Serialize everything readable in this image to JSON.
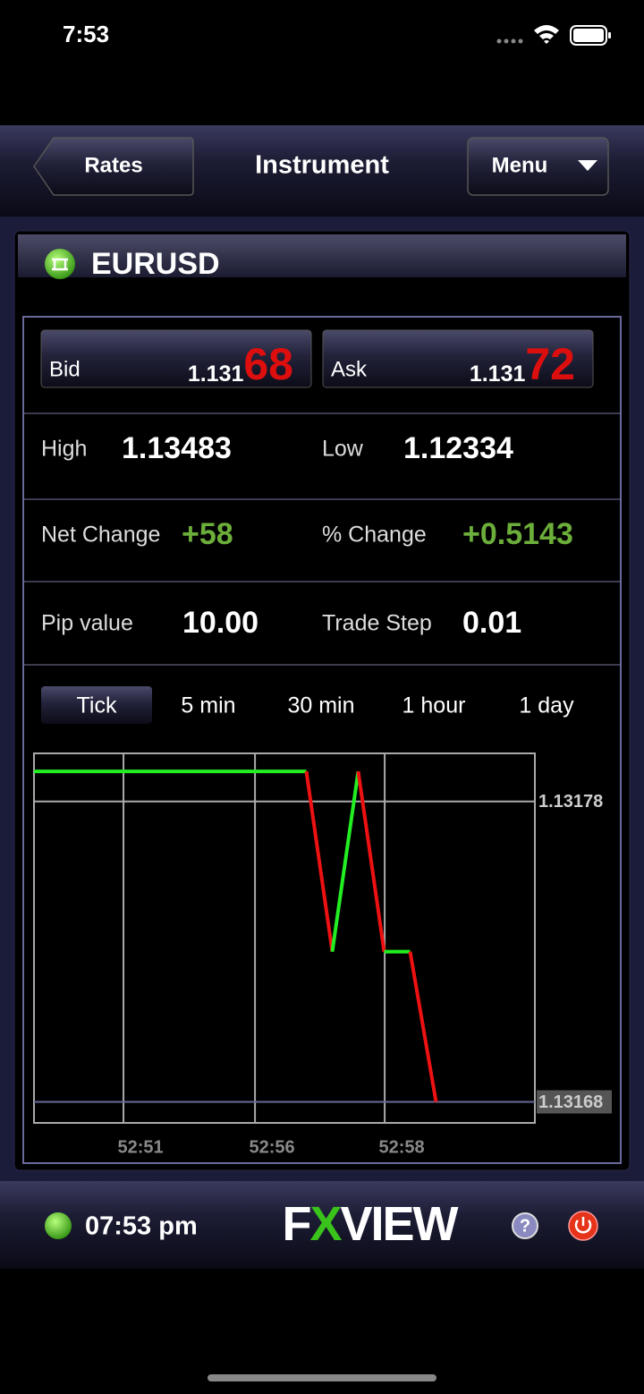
{
  "status_bar": {
    "time": "7:53"
  },
  "nav": {
    "back": "Rates",
    "title": "Instrument",
    "menu": "Menu"
  },
  "instrument": {
    "name": "EURUSD"
  },
  "quote": {
    "bid": {
      "label": "Bid",
      "prefix": "1.131",
      "pips": "68"
    },
    "ask": {
      "label": "Ask",
      "prefix": "1.131",
      "pips": "72"
    }
  },
  "stats": [
    [
      {
        "label": "High",
        "value": "1.13483"
      },
      {
        "label": "Low",
        "value": "1.12334"
      }
    ],
    [
      {
        "label": "Net Change",
        "value": "+58"
      },
      {
        "label": "% Change",
        "value": "+0.5143"
      }
    ],
    [
      {
        "label": "Pip value",
        "value": "10.00"
      },
      {
        "label": "Trade Step",
        "value": "0.01"
      }
    ]
  ],
  "tabs": [
    "Tick",
    "5 min",
    "30 min",
    "1 hour",
    "1 day"
  ],
  "chart_data": {
    "type": "line",
    "x": [
      0,
      10.5,
      11.5,
      12.5,
      13.5,
      14.5,
      15.5
    ],
    "values": [
      1.13179,
      1.13179,
      1.13173,
      1.13179,
      1.13173,
      1.13173,
      1.13168
    ],
    "colors": {
      "up": "#22ee22",
      "down": "#ee1111"
    },
    "xlim": [
      0,
      19.31
    ],
    "xticks": [
      {
        "value": 3.45,
        "label": "52:51"
      },
      {
        "value": 8.52,
        "label": "52:56"
      },
      {
        "value": 13.52,
        "label": "52:58"
      }
    ],
    "ylim": [
      1.131673,
      1.131796
    ],
    "yticks": [
      1.13168,
      1.13178
    ],
    "grid": true
  },
  "footer": {
    "time": "07:53 pm",
    "logo": [
      "F",
      "X",
      "VIEW"
    ]
  }
}
